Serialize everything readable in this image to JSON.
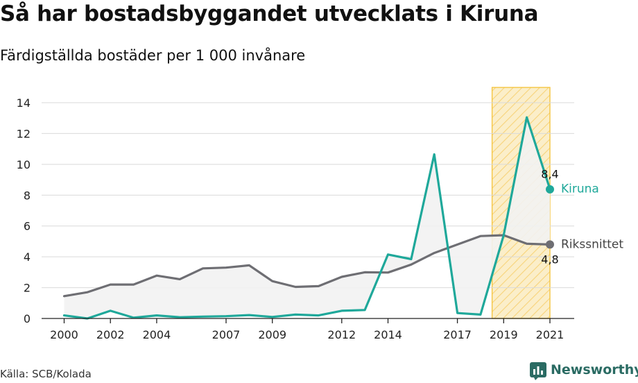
{
  "title": "Så har bostadsbyggandet utvecklats i Kiruna",
  "subtitle": "Färdigställda bostäder per 1 000 invånare",
  "source": "Källa: SCB/Kolada",
  "brand": "Newsworthy",
  "colors": {
    "kiruna": "#1fa89a",
    "riket": "#6e6e73",
    "highlight_fill": "#fbeec9",
    "highlight_border": "#f5c542",
    "brand": "#2a6b63",
    "gap_fill": "#f2f2f2"
  },
  "chart_data": {
    "type": "line",
    "x_ticks": [
      "2000",
      "2002",
      "2004",
      "2007",
      "2009",
      "2012",
      "2014",
      "2017",
      "2019",
      "2021"
    ],
    "y_ticks": [
      "0",
      "2",
      "4",
      "6",
      "8",
      "10",
      "12",
      "14"
    ],
    "ylim": [
      0,
      14
    ],
    "xlim": [
      1999.6,
      2021.5
    ],
    "grid": true,
    "highlight_range": [
      2018.5,
      2021
    ],
    "series": [
      {
        "name": "Kiruna",
        "color": "#1fa89a",
        "end_label": "8,4",
        "x": [
          2000,
          2001,
          2002,
          2003,
          2004,
          2005,
          2006,
          2007,
          2008,
          2009,
          2010,
          2011,
          2012,
          2013,
          2014,
          2015,
          2016,
          2017,
          2018,
          2019,
          2020,
          2021
        ],
        "values": [
          0.2,
          0.0,
          0.5,
          0.05,
          0.2,
          0.08,
          0.12,
          0.15,
          0.22,
          0.1,
          0.25,
          0.2,
          0.5,
          0.55,
          4.15,
          3.85,
          10.65,
          0.35,
          0.25,
          5.4,
          13.05,
          8.4
        ]
      },
      {
        "name": "Rikssnittet",
        "color": "#6e6e73",
        "end_label": "4,8",
        "x": [
          2000,
          2001,
          2002,
          2003,
          2004,
          2005,
          2006,
          2007,
          2008,
          2009,
          2010,
          2011,
          2012,
          2013,
          2014,
          2015,
          2016,
          2017,
          2018,
          2019,
          2020,
          2021
        ],
        "values": [
          1.45,
          1.7,
          2.2,
          2.2,
          2.78,
          2.55,
          3.25,
          3.3,
          3.45,
          2.42,
          2.05,
          2.1,
          2.7,
          3.0,
          2.98,
          3.5,
          4.25,
          4.8,
          5.35,
          5.4,
          4.85,
          4.8
        ]
      }
    ]
  }
}
